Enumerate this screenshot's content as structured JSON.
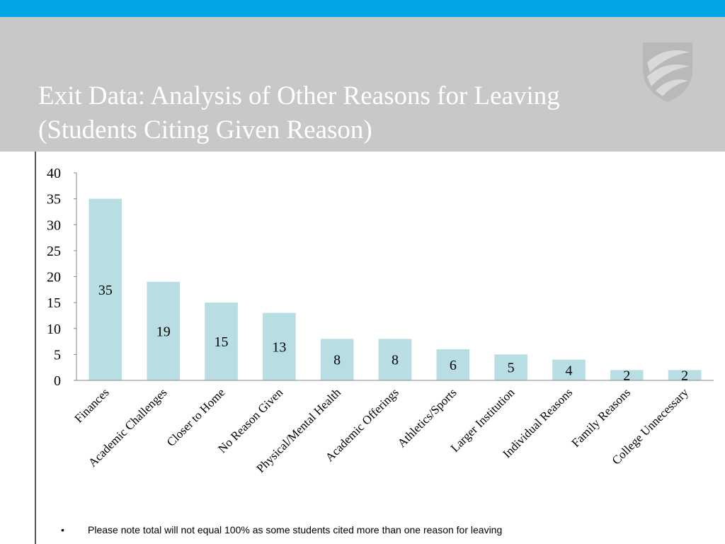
{
  "slide": {
    "title_line1": "Exit Data: Analysis of Other Reasons for Leaving",
    "title_line2": "(Students Citing Given Reason)",
    "bullet": "•",
    "footnote": "Please note total will not equal 100% as some students cited more than one reason for leaving"
  },
  "colors": {
    "stripe": "#00a6e6",
    "header": "#c8c8c8",
    "title": "#ffffff",
    "bar": "#b8dde3",
    "axis": "#868686",
    "text": "#000000",
    "vline": "#555555"
  },
  "chart_data": {
    "type": "bar",
    "title": "",
    "xlabel": "",
    "ylabel": "",
    "categories": [
      "Finances",
      "Academic Challenges",
      "Closer to Home",
      "No Reason Given",
      "Physical/Mental Health",
      "Academic Offerings",
      "Athletics/Sports",
      "Larger Institution",
      "Individual Reasons",
      "Family Reasons",
      "College Unnecessary"
    ],
    "values": [
      35,
      19,
      15,
      13,
      8,
      8,
      6,
      5,
      4,
      2,
      2
    ],
    "ylim": [
      0,
      40
    ],
    "yticks": [
      0,
      5,
      10,
      15,
      20,
      25,
      30,
      35,
      40
    ],
    "grid": false,
    "legend": "none",
    "data_labels": true
  }
}
